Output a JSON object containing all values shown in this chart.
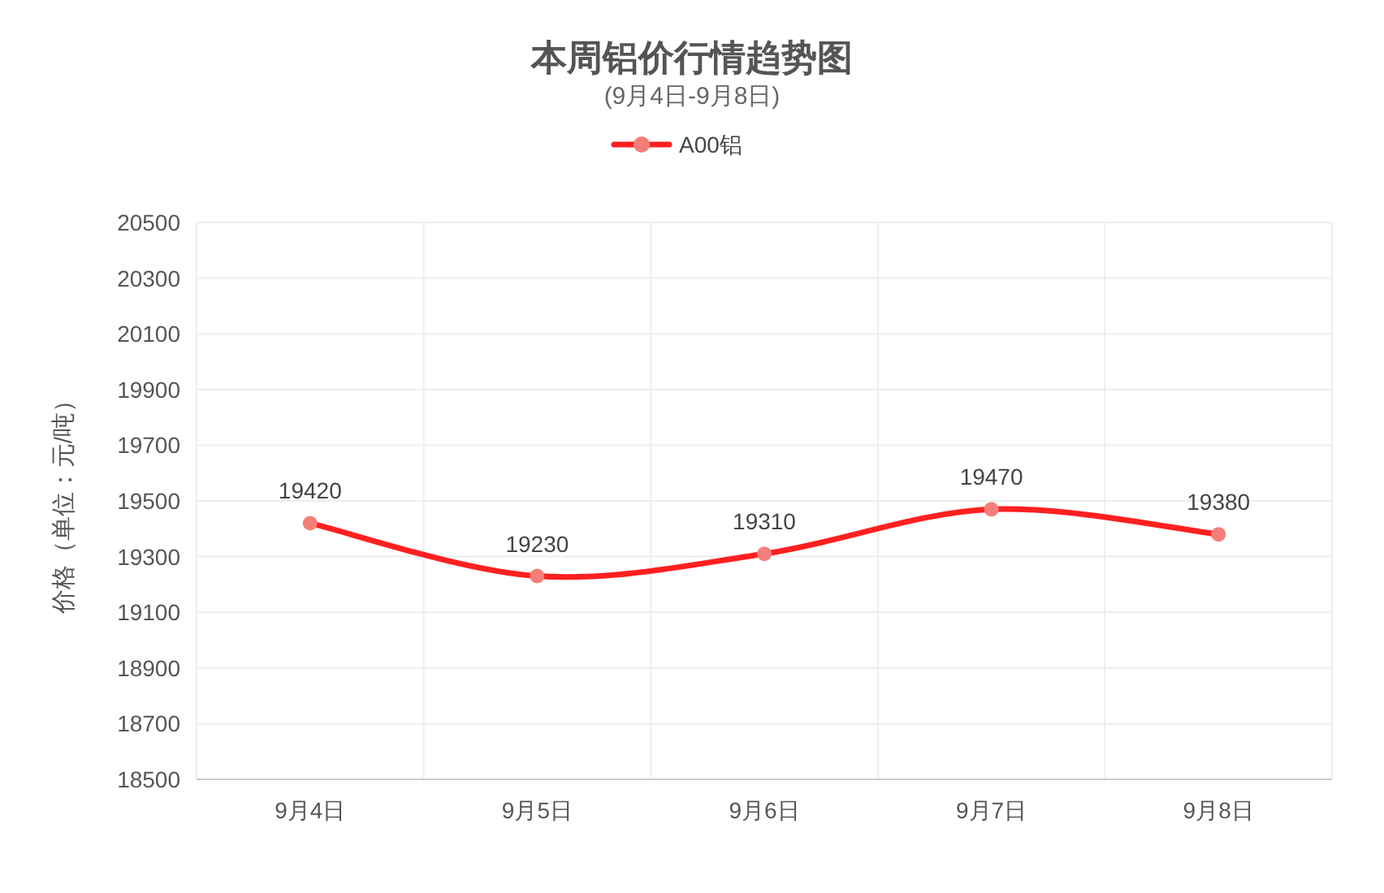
{
  "chart_data": {
    "type": "line",
    "title": "本周铝价行情趋势图",
    "subtitle": "(9月4日-9月8日)",
    "ylabel": "价格（单位：元/吨）",
    "categories": [
      "9月4日",
      "9月5日",
      "9月6日",
      "9月7日",
      "9月8日"
    ],
    "series": [
      {
        "name": "A00铝",
        "color": "#ff2020",
        "values": [
          19420,
          19230,
          19310,
          19470,
          19380
        ]
      }
    ],
    "ylim": [
      18500,
      20500
    ],
    "yticks": [
      18500,
      18700,
      18900,
      19100,
      19300,
      19500,
      19700,
      19900,
      20100,
      20300,
      20500
    ],
    "grid": true,
    "legend": "top",
    "marker": "circle",
    "line_style": "solid",
    "data_labels": true
  }
}
